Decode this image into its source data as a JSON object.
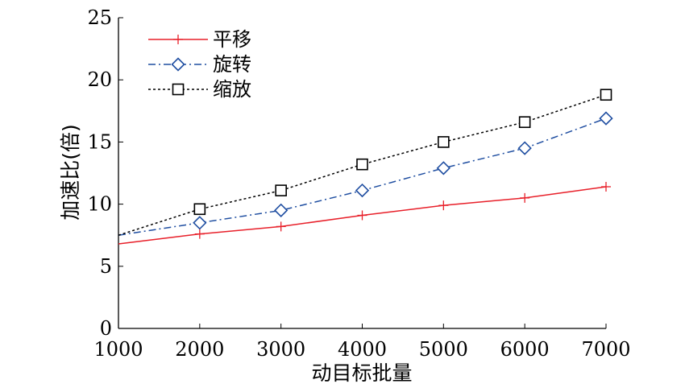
{
  "chart_data": {
    "type": "line",
    "title": "",
    "xlabel": "动目标批量",
    "ylabel": "加速比(倍)",
    "x": [
      1000,
      2000,
      3000,
      4000,
      5000,
      6000,
      7000
    ],
    "xlim": [
      1000,
      7000
    ],
    "ylim": [
      0,
      25
    ],
    "x_ticks": [
      "1000",
      "2000",
      "3000",
      "4000",
      "5000",
      "6000",
      "7000"
    ],
    "y_ticks": [
      "0",
      "5",
      "10",
      "15",
      "20",
      "25"
    ],
    "grid": false,
    "legend_position": "top-left",
    "series": [
      {
        "name": "平移",
        "color": "#e8202a",
        "line_style": "solid",
        "marker": "plus",
        "values": [
          6.8,
          7.6,
          8.2,
          9.1,
          9.9,
          10.5,
          11.4
        ],
        "marker_values": [
          null,
          7.6,
          8.2,
          9.1,
          9.9,
          10.5,
          11.4
        ]
      },
      {
        "name": "旋转",
        "color": "#1f4ea1",
        "line_style": "dash-dot",
        "marker": "diamond",
        "values": [
          7.5,
          8.5,
          9.5,
          11.1,
          12.9,
          14.5,
          16.9
        ],
        "marker_values": [
          null,
          8.5,
          9.5,
          11.1,
          12.9,
          14.5,
          16.9
        ]
      },
      {
        "name": "缩放",
        "color": "#000000",
        "line_style": "dotted",
        "marker": "square",
        "values": [
          7.5,
          9.6,
          11.1,
          13.2,
          15.0,
          16.6,
          18.8
        ],
        "marker_values": [
          null,
          9.6,
          11.1,
          13.2,
          15.0,
          16.6,
          18.8
        ]
      }
    ]
  }
}
